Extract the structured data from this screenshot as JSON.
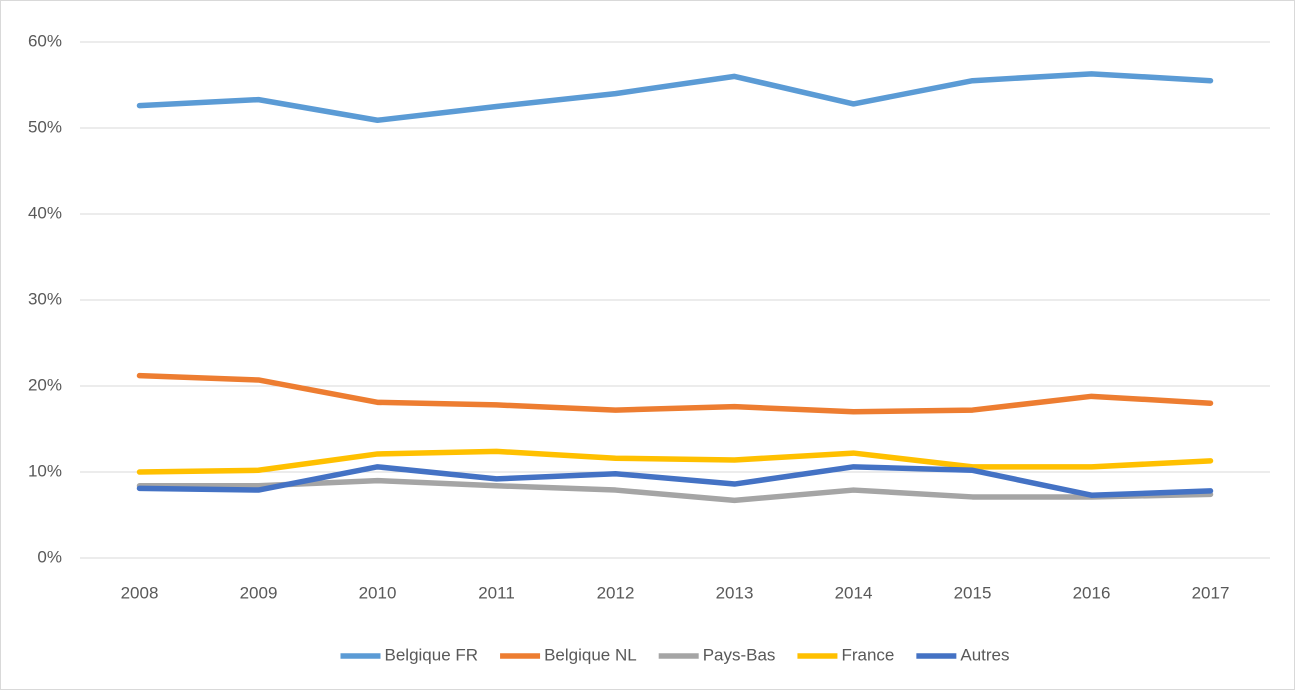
{
  "chart_data": {
    "type": "line",
    "categories": [
      "2008",
      "2009",
      "2010",
      "2011",
      "2012",
      "2013",
      "2014",
      "2015",
      "2016",
      "2017"
    ],
    "series": [
      {
        "name": "Belgique FR",
        "color": "#5b9bd5",
        "values": [
          52.6,
          53.3,
          50.9,
          52.5,
          54.0,
          56.0,
          52.8,
          55.5,
          56.3,
          55.5
        ]
      },
      {
        "name": "Belgique NL",
        "color": "#ed7d31",
        "values": [
          21.2,
          20.7,
          18.1,
          17.8,
          17.2,
          17.6,
          17.0,
          17.2,
          18.8,
          18.0
        ]
      },
      {
        "name": "Pays-Bas",
        "color": "#a5a5a5",
        "values": [
          8.4,
          8.4,
          9.0,
          8.4,
          7.9,
          6.7,
          7.9,
          7.1,
          7.1,
          7.4
        ]
      },
      {
        "name": "France",
        "color": "#ffc000",
        "values": [
          10.0,
          10.2,
          12.1,
          12.4,
          11.6,
          11.4,
          12.2,
          10.6,
          10.6,
          11.3
        ]
      },
      {
        "name": "Autres",
        "color": "#4472c4",
        "values": [
          8.1,
          7.9,
          10.6,
          9.2,
          9.8,
          8.6,
          10.6,
          10.2,
          7.3,
          7.8
        ]
      }
    ],
    "ylim": [
      0,
      60
    ],
    "yticks": [
      {
        "value": 0,
        "label": "0%"
      },
      {
        "value": 10,
        "label": "10%"
      },
      {
        "value": 20,
        "label": "20%"
      },
      {
        "value": 30,
        "label": "30%"
      },
      {
        "value": 40,
        "label": "40%"
      },
      {
        "value": 50,
        "label": "50%"
      },
      {
        "value": 60,
        "label": "60%"
      }
    ],
    "grid": true,
    "legend": "bottom"
  }
}
